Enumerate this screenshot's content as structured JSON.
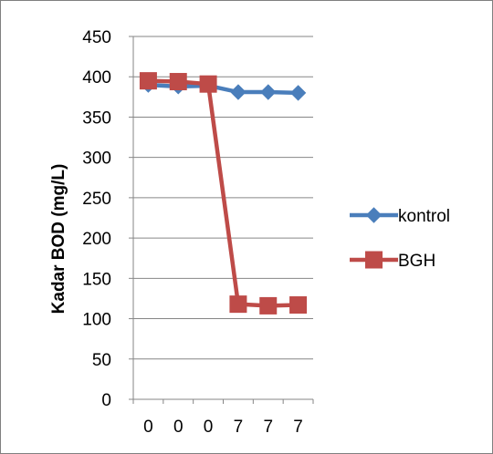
{
  "chart_data": {
    "type": "line",
    "title": "",
    "xlabel": "",
    "ylabel": "Kadar BOD (mg/L)",
    "categories": [
      "0",
      "0",
      "0",
      "7",
      "7",
      "7"
    ],
    "ylim": [
      0,
      450
    ],
    "yticks": [
      0,
      50,
      100,
      150,
      200,
      250,
      300,
      350,
      400,
      450
    ],
    "grid": true,
    "legend": "right",
    "series": [
      {
        "name": "kontrol",
        "marker": "diamond",
        "color": "#4a7ebb",
        "values": [
          390,
          388,
          389,
          381,
          381,
          380
        ]
      },
      {
        "name": "BGH",
        "marker": "square",
        "color": "#be4b48",
        "values": [
          395,
          394,
          391,
          118,
          116,
          117
        ]
      }
    ]
  }
}
